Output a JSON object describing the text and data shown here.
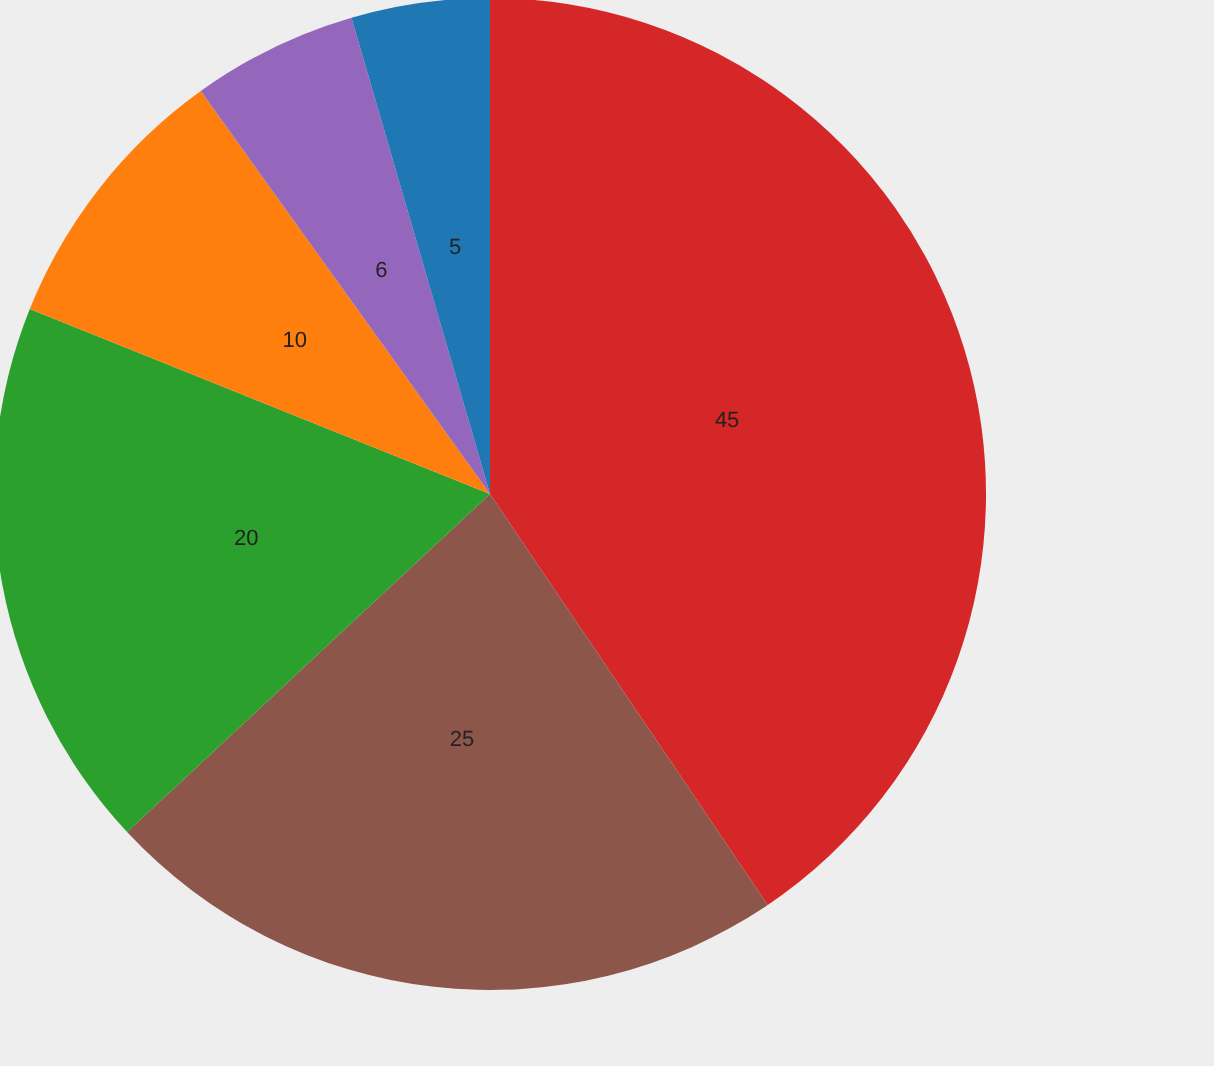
{
  "chart_data": {
    "type": "pie",
    "categories": [
      null,
      null,
      null,
      null,
      null,
      null
    ],
    "values": [
      45,
      25,
      20,
      10,
      6,
      5
    ],
    "colors": [
      "#d62728",
      "#8c564b",
      "#2ca02c",
      "#ff7f0e",
      "#9467bd",
      "#1f77b4"
    ],
    "data_labels": true
  }
}
